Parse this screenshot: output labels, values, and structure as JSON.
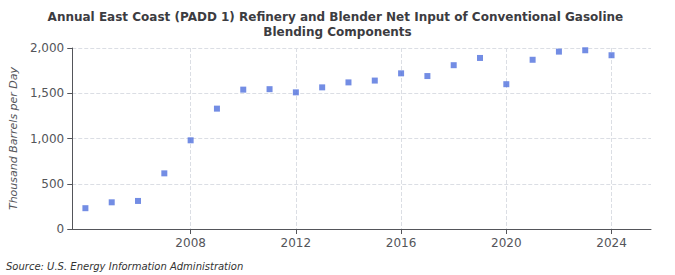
{
  "chart_data": {
    "type": "scatter",
    "title": "Annual East Coast (PADD 1) Refinery and Blender Net Input of Conventional Gasoline Blending Components",
    "y_label": "Thousand Barrels per Day",
    "annotation": "Source: U.S. Energy Information Administration",
    "x": [
      2004,
      2005,
      2006,
      2007,
      2008,
      2009,
      2010,
      2011,
      2012,
      2013,
      2014,
      2015,
      2016,
      2017,
      2018,
      2019,
      2020,
      2021,
      2022,
      2023,
      2024
    ],
    "values": [
      230,
      295,
      310,
      615,
      980,
      1330,
      1540,
      1545,
      1510,
      1565,
      1620,
      1640,
      1720,
      1690,
      1810,
      1890,
      1600,
      1870,
      1960,
      1975,
      1920
    ],
    "marker": "square",
    "xlim": [
      2003.5,
      2025.5
    ],
    "xticks": [
      2008,
      2012,
      2016,
      2020,
      2024
    ],
    "ylim": [
      0,
      2000
    ],
    "yticks": [
      0,
      500,
      {
        "value": 1000,
        "label": "1,000"
      },
      {
        "value": 1500,
        "label": "1,500"
      },
      {
        "value": 2000,
        "label": "2,000"
      }
    ],
    "grid": true
  }
}
